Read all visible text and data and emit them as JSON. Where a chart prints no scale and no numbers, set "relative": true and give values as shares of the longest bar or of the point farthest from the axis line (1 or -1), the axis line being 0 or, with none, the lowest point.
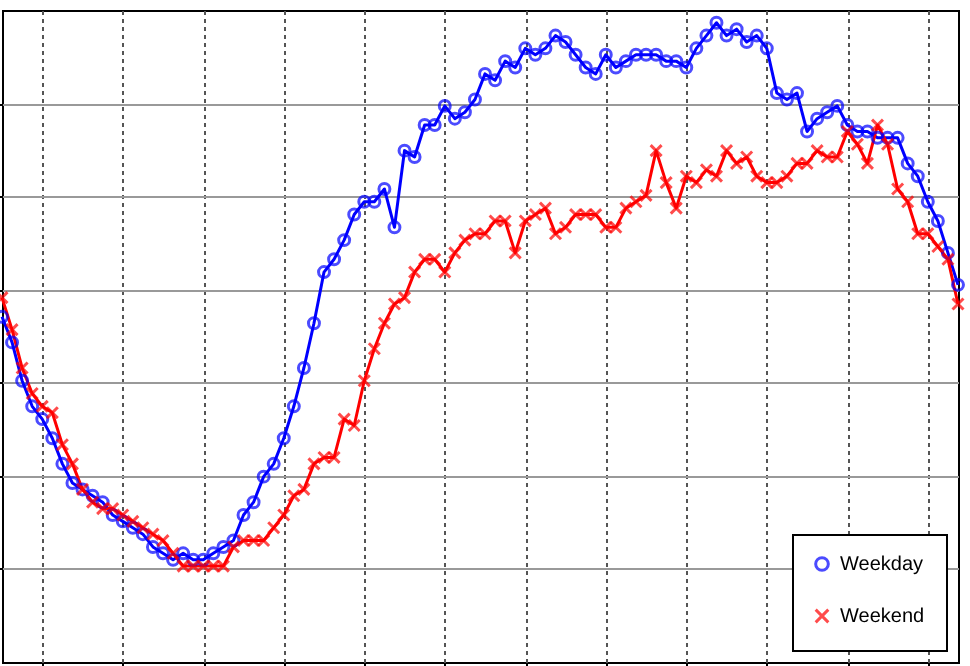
{
  "chart_data": {
    "type": "line",
    "relative": true,
    "grid": true,
    "legend": "bottom right",
    "line_style": "solid",
    "categories": [
      null,
      null,
      null,
      null,
      null,
      null,
      null,
      null,
      null,
      null,
      null,
      null,
      null,
      null,
      null,
      null,
      null,
      null,
      null,
      null,
      null,
      null,
      null,
      null,
      null,
      null,
      null,
      null,
      null,
      null,
      null,
      null,
      null,
      null,
      null,
      null,
      null,
      null,
      null,
      null,
      null,
      null,
      null,
      null,
      null,
      null,
      null,
      null,
      null,
      null,
      null,
      null,
      null,
      null,
      null,
      null,
      null,
      null,
      null,
      null,
      null,
      null,
      null,
      null,
      null,
      null,
      null,
      null,
      null,
      null,
      null,
      null,
      null,
      null,
      null,
      null,
      null,
      null,
      null,
      null,
      null,
      null,
      null,
      null,
      null,
      null,
      null,
      null,
      null,
      null,
      null,
      null,
      null,
      null,
      null,
      null
    ],
    "series": [
      {
        "name": "Weekday",
        "color": "#0000ff",
        "marker": "circle",
        "values": [
          0.54,
          0.5,
          0.44,
          0.4,
          0.38,
          0.35,
          0.31,
          0.28,
          0.27,
          0.26,
          0.25,
          0.23,
          0.22,
          0.21,
          0.2,
          0.18,
          0.17,
          0.16,
          0.17,
          0.16,
          0.16,
          0.17,
          0.18,
          0.19,
          0.23,
          0.25,
          0.29,
          0.31,
          0.35,
          0.4,
          0.46,
          0.53,
          0.61,
          0.63,
          0.66,
          0.7,
          0.72,
          0.72,
          0.74,
          0.68,
          0.8,
          0.79,
          0.84,
          0.84,
          0.87,
          0.85,
          0.86,
          0.88,
          0.92,
          0.91,
          0.94,
          0.93,
          0.96,
          0.95,
          0.96,
          0.98,
          0.97,
          0.95,
          0.93,
          0.92,
          0.95,
          0.93,
          0.94,
          0.95,
          0.95,
          0.95,
          0.94,
          0.94,
          0.93,
          0.96,
          0.98,
          1.0,
          0.98,
          0.99,
          0.97,
          0.98,
          0.96,
          0.89,
          0.88,
          0.89,
          0.83,
          0.85,
          0.86,
          0.87,
          0.84,
          0.83,
          0.83,
          0.82,
          0.82,
          0.82,
          0.78,
          0.76,
          0.72,
          0.69,
          0.64,
          0.59
        ]
      },
      {
        "name": "Weekend",
        "color": "#ff0000",
        "marker": "cross",
        "values": [
          0.57,
          0.52,
          0.46,
          0.42,
          0.4,
          0.39,
          0.34,
          0.31,
          0.27,
          0.25,
          0.24,
          0.24,
          0.23,
          0.22,
          0.21,
          0.2,
          0.19,
          0.17,
          0.15,
          0.15,
          0.15,
          0.15,
          0.15,
          0.18,
          0.19,
          0.19,
          0.19,
          0.21,
          0.23,
          0.26,
          0.27,
          0.31,
          0.32,
          0.32,
          0.38,
          0.37,
          0.44,
          0.49,
          0.53,
          0.56,
          0.57,
          0.61,
          0.63,
          0.63,
          0.61,
          0.64,
          0.66,
          0.67,
          0.67,
          0.69,
          0.69,
          0.64,
          0.69,
          0.7,
          0.71,
          0.67,
          0.68,
          0.7,
          0.7,
          0.7,
          0.68,
          0.68,
          0.71,
          0.72,
          0.73,
          0.8,
          0.75,
          0.71,
          0.76,
          0.75,
          0.77,
          0.76,
          0.8,
          0.78,
          0.79,
          0.76,
          0.75,
          0.75,
          0.76,
          0.78,
          0.78,
          0.8,
          0.79,
          0.79,
          0.83,
          0.81,
          0.78,
          0.84,
          0.81,
          0.74,
          0.72,
          0.67,
          0.67,
          0.65,
          0.63,
          0.56
        ]
      }
    ]
  }
}
